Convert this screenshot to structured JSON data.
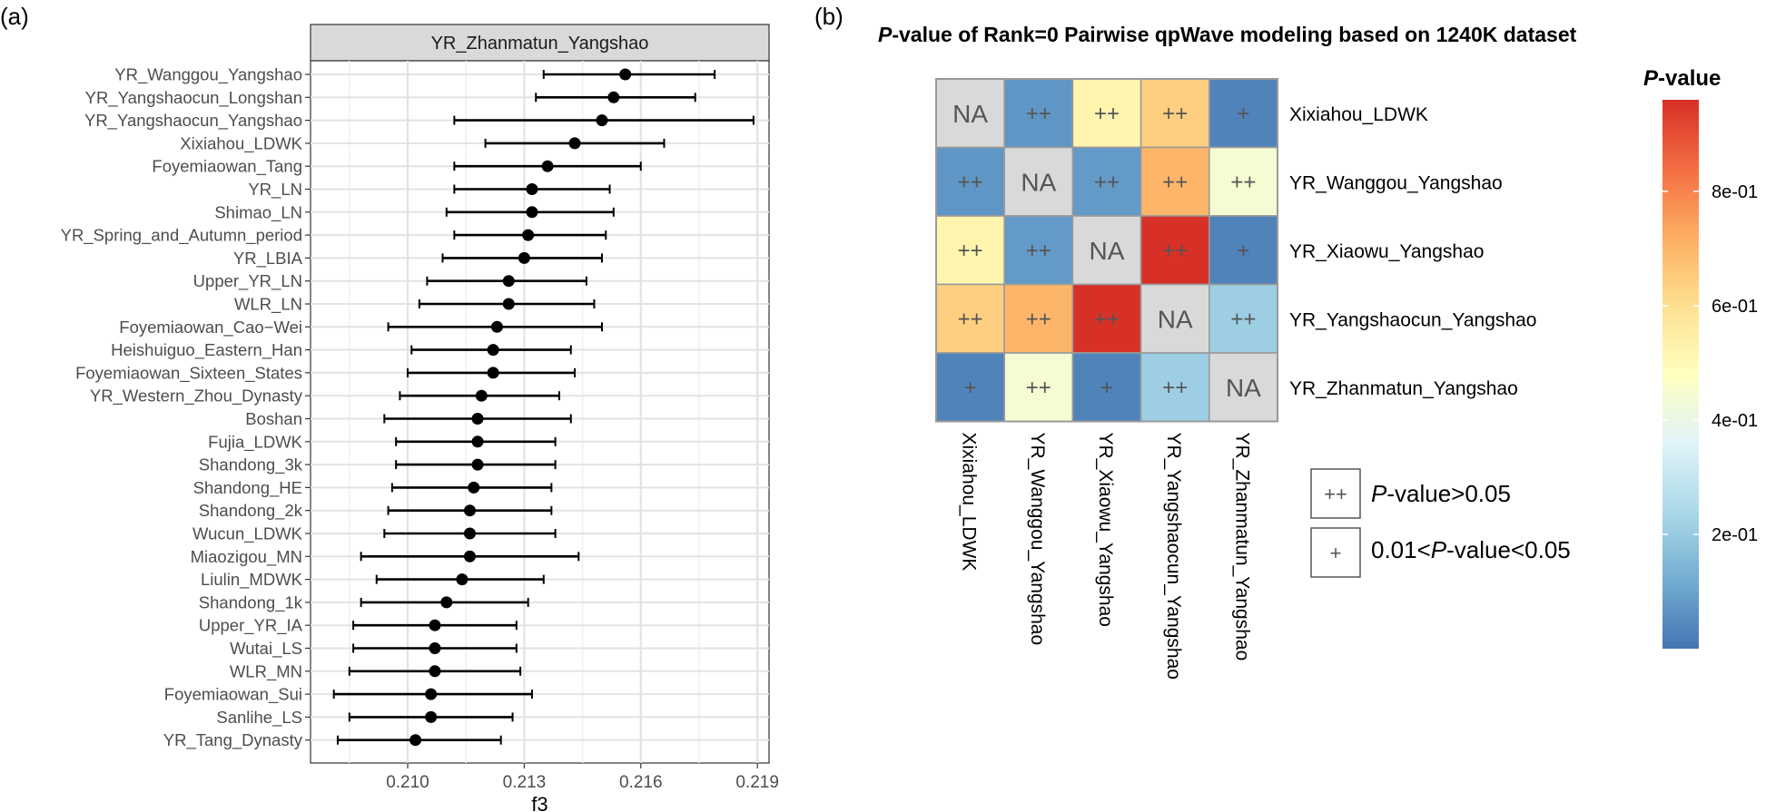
{
  "chart_data": [
    {
      "type": "forest",
      "panel_label": "(a)",
      "facet_title": "YR_Zhanmatun_Yangshao",
      "xlabel": "f3",
      "ylabel": "",
      "xlim": [
        0.2075,
        0.2193
      ],
      "xticks": [
        0.21,
        0.213,
        0.216,
        0.219
      ],
      "xtick_labels": [
        "0.210",
        "0.213",
        "0.216",
        "0.219"
      ],
      "grid": true,
      "points": [
        {
          "label": "YR_Wanggou_Yangshao",
          "f3": 0.2156,
          "lo": 0.2135,
          "hi": 0.2179
        },
        {
          "label": "YR_Yangshaocun_Longshan",
          "f3": 0.2153,
          "lo": 0.2133,
          "hi": 0.2174
        },
        {
          "label": "YR_Yangshaocun_Yangshao",
          "f3": 0.215,
          "lo": 0.2112,
          "hi": 0.2189
        },
        {
          "label": "Xixiahou_LDWK",
          "f3": 0.2143,
          "lo": 0.212,
          "hi": 0.2166
        },
        {
          "label": "Foyemiaowan_Tang",
          "f3": 0.2136,
          "lo": 0.2112,
          "hi": 0.216
        },
        {
          "label": "YR_LN",
          "f3": 0.2132,
          "lo": 0.2112,
          "hi": 0.2152
        },
        {
          "label": "Shimao_LN",
          "f3": 0.2132,
          "lo": 0.211,
          "hi": 0.2153
        },
        {
          "label": "YR_Spring_and_Autumn_period",
          "f3": 0.2131,
          "lo": 0.2112,
          "hi": 0.2151
        },
        {
          "label": "YR_LBIA",
          "f3": 0.213,
          "lo": 0.2109,
          "hi": 0.215
        },
        {
          "label": "Upper_YR_LN",
          "f3": 0.2126,
          "lo": 0.2105,
          "hi": 0.2146
        },
        {
          "label": "WLR_LN",
          "f3": 0.2126,
          "lo": 0.2103,
          "hi": 0.2148
        },
        {
          "label": "Foyemiaowan_Cao−Wei",
          "f3": 0.2123,
          "lo": 0.2095,
          "hi": 0.215
        },
        {
          "label": "Heishuiguo_Eastern_Han",
          "f3": 0.2122,
          "lo": 0.2101,
          "hi": 0.2142
        },
        {
          "label": "Foyemiaowan_Sixteen_States",
          "f3": 0.2122,
          "lo": 0.21,
          "hi": 0.2143
        },
        {
          "label": "YR_Western_Zhou_Dynasty",
          "f3": 0.2119,
          "lo": 0.2098,
          "hi": 0.2139
        },
        {
          "label": "Boshan",
          "f3": 0.2118,
          "lo": 0.2094,
          "hi": 0.2142
        },
        {
          "label": "Fujia_LDWK",
          "f3": 0.2118,
          "lo": 0.2097,
          "hi": 0.2138
        },
        {
          "label": "Shandong_3k",
          "f3": 0.2118,
          "lo": 0.2097,
          "hi": 0.2138
        },
        {
          "label": "Shandong_HE",
          "f3": 0.2117,
          "lo": 0.2096,
          "hi": 0.2137
        },
        {
          "label": "Shandong_2k",
          "f3": 0.2116,
          "lo": 0.2095,
          "hi": 0.2137
        },
        {
          "label": "Wucun_LDWK",
          "f3": 0.2116,
          "lo": 0.2094,
          "hi": 0.2138
        },
        {
          "label": "Miaozigou_MN",
          "f3": 0.2116,
          "lo": 0.2088,
          "hi": 0.2144
        },
        {
          "label": "Liulin_MDWK",
          "f3": 0.2114,
          "lo": 0.2092,
          "hi": 0.2135
        },
        {
          "label": "Shandong_1k",
          "f3": 0.211,
          "lo": 0.2088,
          "hi": 0.2131
        },
        {
          "label": "Upper_YR_IA",
          "f3": 0.2107,
          "lo": 0.2086,
          "hi": 0.2128
        },
        {
          "label": "Wutai_LS",
          "f3": 0.2107,
          "lo": 0.2086,
          "hi": 0.2128
        },
        {
          "label": "WLR_MN",
          "f3": 0.2107,
          "lo": 0.2085,
          "hi": 0.2129
        },
        {
          "label": "Foyemiaowan_Sui",
          "f3": 0.2106,
          "lo": 0.2081,
          "hi": 0.2132
        },
        {
          "label": "Sanlihe_LS",
          "f3": 0.2106,
          "lo": 0.2085,
          "hi": 0.2127
        },
        {
          "label": "YR_Tang_Dynasty",
          "f3": 0.2102,
          "lo": 0.2082,
          "hi": 0.2124
        }
      ]
    },
    {
      "type": "heatmap",
      "panel_label": "(b)",
      "title_italic": "P",
      "title_rest": "-value of Rank=0 Pairwise qpWave modeling based on 1240K dataset",
      "rows": [
        "Xixiahou_LDWK",
        "YR_Wanggou_Yangshao",
        "YR_Xiaowu_Yangshao",
        "YR_Yangshaocun_Yangshao",
        "YR_Zhanmatun_Yangshao"
      ],
      "columns": [
        "Xixiahou_LDWK",
        "YR_Wanggou_Yangshao",
        "YR_Xiaowu_Yangshao",
        "YR_Yangshaocun_Yangshao",
        "YR_Zhanmatun_Yangshao"
      ],
      "values": [
        [
          null,
          0.07,
          0.52,
          0.64,
          0.03
        ],
        [
          0.07,
          null,
          0.08,
          0.7,
          0.44
        ],
        [
          0.52,
          0.08,
          null,
          0.96,
          0.03
        ],
        [
          0.64,
          0.7,
          0.96,
          null,
          0.21
        ],
        [
          0.03,
          0.44,
          0.03,
          0.21,
          null
        ]
      ],
      "labels": [
        [
          "NA",
          "++",
          "++",
          "++",
          "+"
        ],
        [
          "++",
          "NA",
          "++",
          "++",
          "++"
        ],
        [
          "++",
          "++",
          "NA",
          "++",
          "+"
        ],
        [
          "++",
          "++",
          "++",
          "NA",
          "++"
        ],
        [
          "+",
          "++",
          "+",
          "++",
          "NA"
        ]
      ],
      "na_color": "#d9d9d9",
      "colorbar": {
        "title_italic": "P",
        "title_rest": "-value",
        "min": 0.0,
        "max": 0.96,
        "ticks": [
          0.2,
          0.4,
          0.6,
          0.8
        ],
        "tick_labels": [
          "2e-01",
          "4e-01",
          "6e-01",
          "8e-01"
        ],
        "colors": [
          "#4575b4",
          "#74add1",
          "#abd9e9",
          "#e0f3f8",
          "#ffffbf",
          "#fee090",
          "#fdae61",
          "#f46d43",
          "#d73027"
        ]
      },
      "legend": [
        {
          "symbol": "++",
          "text_italic": "P",
          "text_rest": "-value>0.05",
          "text_prefix": ""
        },
        {
          "symbol": "+",
          "text_prefix": "0.01<",
          "text_italic": "P",
          "text_rest": "-value<0.05"
        }
      ]
    }
  ]
}
